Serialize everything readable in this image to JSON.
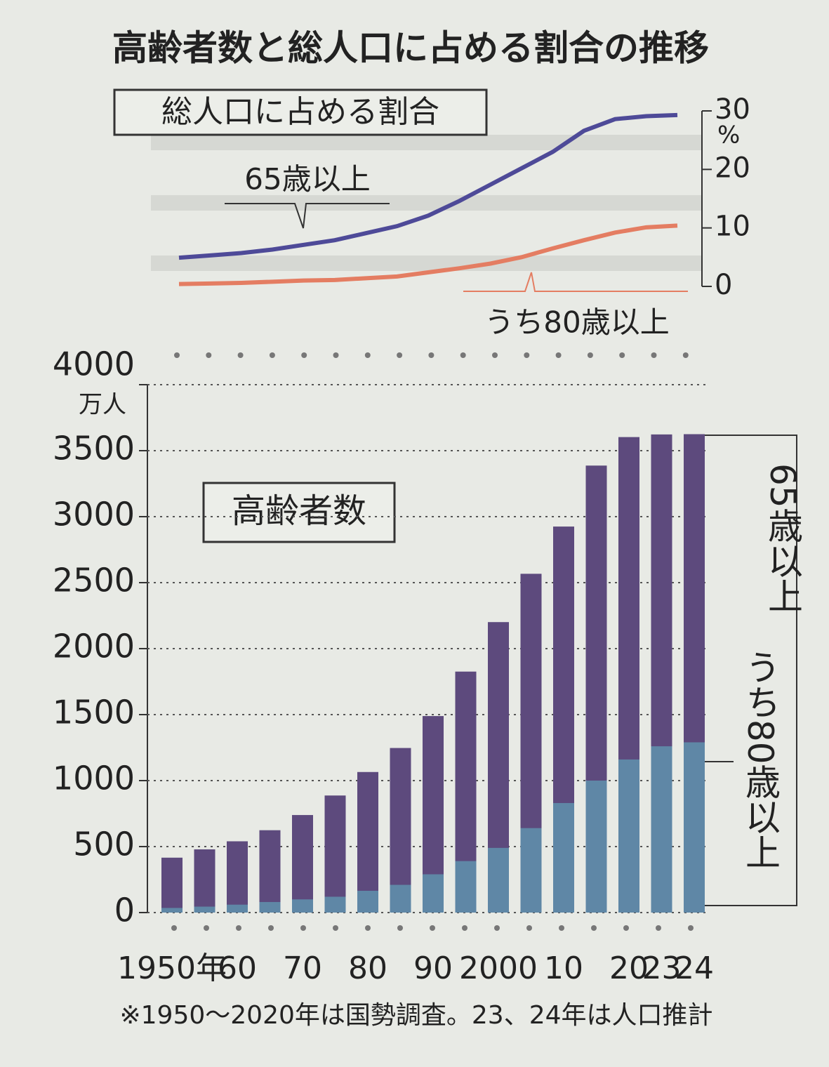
{
  "title": "高齢者数と総人口に占める割合の推移",
  "note": "※1950〜2020年は国勢調査。23、24年は人口推計",
  "chart_data": [
    {
      "type": "line",
      "title": "総人口に占める割合",
      "y_unit": "%",
      "ylim": [
        0,
        30
      ],
      "yticks": [
        0,
        10,
        20,
        30
      ],
      "series": [
        {
          "name": "65歳以上",
          "color": "#4e4a98",
          "values": [
            4.9,
            5.3,
            5.7,
            6.3,
            7.1,
            7.9,
            9.1,
            10.3,
            12.1,
            14.6,
            17.4,
            20.2,
            23.0,
            26.6,
            28.6,
            29.1,
            29.3
          ]
        },
        {
          "name": "うち80歳以上",
          "color": "#e47d62",
          "values": [
            0.4,
            0.5,
            0.6,
            0.8,
            1.0,
            1.1,
            1.4,
            1.7,
            2.4,
            3.1,
            3.9,
            5.0,
            6.5,
            7.9,
            9.2,
            10.1,
            10.4
          ]
        }
      ]
    },
    {
      "type": "bar",
      "title": "高齢者数",
      "y_unit": "万人",
      "barmode": "overlay",
      "grid": true,
      "categories": [
        "1950年",
        null,
        "60",
        null,
        "70",
        null,
        "80",
        null,
        "90",
        null,
        "2000",
        null,
        "10",
        null,
        "20",
        "23",
        "24"
      ],
      "ylim": [
        0,
        4000
      ],
      "yticks": [
        0,
        500,
        1000,
        1500,
        2000,
        2500,
        3000,
        3500,
        4000
      ],
      "series": [
        {
          "name": "65歳以上",
          "color": "#5d4a7d",
          "values": [
            416,
            479,
            540,
            624,
            739,
            887,
            1065,
            1247,
            1489,
            1826,
            2201,
            2567,
            2925,
            3387,
            3603,
            3623,
            3625
          ]
        },
        {
          "name": "うち80歳以上",
          "color": "#5f87a6",
          "values": [
            35,
            45,
            60,
            80,
            100,
            120,
            165,
            210,
            290,
            390,
            490,
            640,
            830,
            1000,
            1160,
            1260,
            1290
          ]
        }
      ]
    }
  ]
}
